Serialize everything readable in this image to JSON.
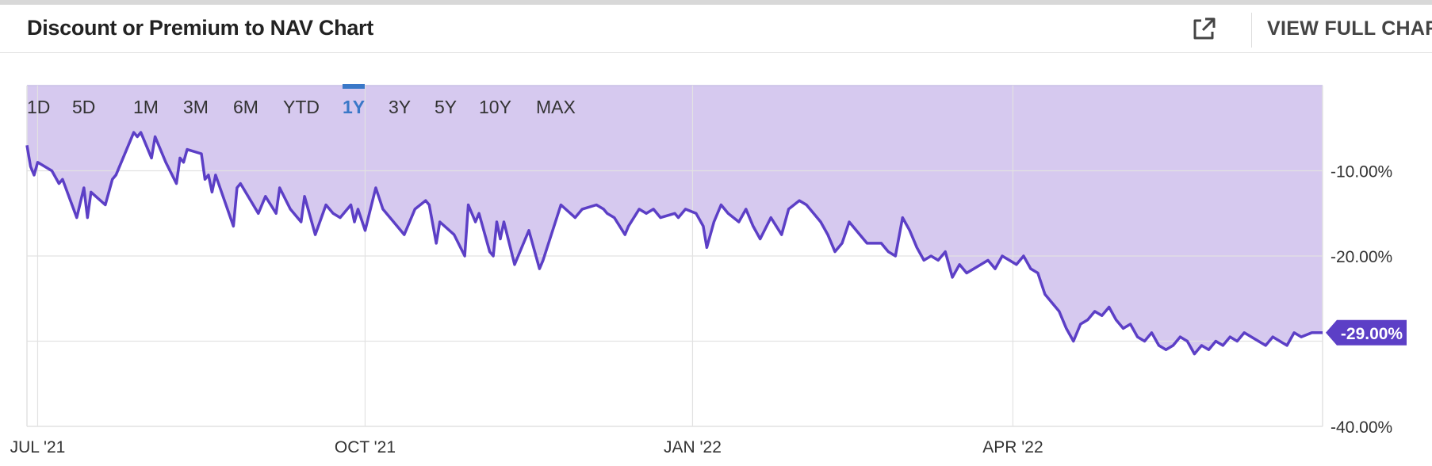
{
  "header": {
    "title": "Discount or Premium to NAV Chart",
    "full_chart_label": "VIEW FULL CHART",
    "expand_icon": "external-link-icon"
  },
  "range_tabs": [
    {
      "label": "1D",
      "active": false
    },
    {
      "label": "5D",
      "active": false
    },
    {
      "label": "1M",
      "active": false
    },
    {
      "label": "3M",
      "active": false
    },
    {
      "label": "6M",
      "active": false
    },
    {
      "label": "YTD",
      "active": false
    },
    {
      "label": "1Y",
      "active": true
    },
    {
      "label": "3Y",
      "active": false
    },
    {
      "label": "5Y",
      "active": false
    },
    {
      "label": "10Y",
      "active": false
    },
    {
      "label": "MAX",
      "active": false
    }
  ],
  "colors": {
    "line": "#5c3fc6",
    "fill": "#d6c9ef",
    "badge": "#5c3fc6",
    "grid": "#e2e2e2",
    "active_tab": "#3a78c8"
  },
  "chart_data": {
    "type": "area",
    "title": "Discount or Premium to NAV Chart",
    "xlabel": "",
    "ylabel": "",
    "ylim": [
      -40,
      0
    ],
    "y_ticks": [
      {
        "value": -10,
        "label": "-10.00%"
      },
      {
        "value": -20,
        "label": "-20.00%"
      },
      {
        "value": -40,
        "label": "-40.00%"
      }
    ],
    "y_gridlines": [
      -10,
      -20,
      -30
    ],
    "x_range": [
      "2021-06-28",
      "2022-06-27"
    ],
    "x_ticks": [
      {
        "date": "2021-07-01",
        "label": "JUL '21"
      },
      {
        "date": "2021-10-01",
        "label": "OCT '21"
      },
      {
        "date": "2022-01-01",
        "label": "JAN '22"
      },
      {
        "date": "2022-04-01",
        "label": "APR '22"
      }
    ],
    "last_value_label": "-29.00%",
    "grid": true,
    "series": [
      {
        "points": [
          [
            "2021-06-28",
            -7.0
          ],
          [
            "2021-06-29",
            -9.5
          ],
          [
            "2021-06-30",
            -10.5
          ],
          [
            "2021-07-01",
            -9.0
          ],
          [
            "2021-07-05",
            -10.0
          ],
          [
            "2021-07-07",
            -11.5
          ],
          [
            "2021-07-08",
            -11.0
          ],
          [
            "2021-07-12",
            -15.5
          ],
          [
            "2021-07-14",
            -12.0
          ],
          [
            "2021-07-15",
            -15.5
          ],
          [
            "2021-07-16",
            -12.5
          ],
          [
            "2021-07-20",
            -14.0
          ],
          [
            "2021-07-22",
            -11.0
          ],
          [
            "2021-07-23",
            -10.5
          ],
          [
            "2021-07-28",
            -5.5
          ],
          [
            "2021-07-29",
            -6.0
          ],
          [
            "2021-07-30",
            -5.5
          ],
          [
            "2021-08-02",
            -8.5
          ],
          [
            "2021-08-03",
            -6.0
          ],
          [
            "2021-08-06",
            -9.0
          ],
          [
            "2021-08-09",
            -11.5
          ],
          [
            "2021-08-10",
            -8.5
          ],
          [
            "2021-08-11",
            -9.0
          ],
          [
            "2021-08-12",
            -7.5
          ],
          [
            "2021-08-16",
            -8.0
          ],
          [
            "2021-08-17",
            -11.0
          ],
          [
            "2021-08-18",
            -10.5
          ],
          [
            "2021-08-19",
            -12.5
          ],
          [
            "2021-08-20",
            -10.5
          ],
          [
            "2021-08-25",
            -16.5
          ],
          [
            "2021-08-26",
            -12.0
          ],
          [
            "2021-08-27",
            -11.5
          ],
          [
            "2021-09-01",
            -15.0
          ],
          [
            "2021-09-02",
            -14.0
          ],
          [
            "2021-09-03",
            -13.0
          ],
          [
            "2021-09-06",
            -15.0
          ],
          [
            "2021-09-07",
            -12.0
          ],
          [
            "2021-09-10",
            -14.5
          ],
          [
            "2021-09-13",
            -16.0
          ],
          [
            "2021-09-14",
            -13.0
          ],
          [
            "2021-09-17",
            -17.5
          ],
          [
            "2021-09-20",
            -14.0
          ],
          [
            "2021-09-22",
            -15.0
          ],
          [
            "2021-09-24",
            -15.5
          ],
          [
            "2021-09-27",
            -14.0
          ],
          [
            "2021-09-28",
            -16.0
          ],
          [
            "2021-09-29",
            -14.5
          ],
          [
            "2021-10-01",
            -17.0
          ],
          [
            "2021-10-04",
            -12.0
          ],
          [
            "2021-10-06",
            -14.5
          ],
          [
            "2021-10-09",
            -16.0
          ],
          [
            "2021-10-12",
            -17.5
          ],
          [
            "2021-10-15",
            -14.5
          ],
          [
            "2021-10-18",
            -13.5
          ],
          [
            "2021-10-19",
            -14.0
          ],
          [
            "2021-10-21",
            -18.5
          ],
          [
            "2021-10-22",
            -16.0
          ],
          [
            "2021-10-26",
            -17.5
          ],
          [
            "2021-10-29",
            -20.0
          ],
          [
            "2021-10-30",
            -14.0
          ],
          [
            "2021-11-01",
            -16.0
          ],
          [
            "2021-11-02",
            -15.0
          ],
          [
            "2021-11-05",
            -19.5
          ],
          [
            "2021-11-06",
            -20.0
          ],
          [
            "2021-11-07",
            -16.0
          ],
          [
            "2021-11-08",
            -18.0
          ],
          [
            "2021-11-09",
            -16.0
          ],
          [
            "2021-11-12",
            -21.0
          ],
          [
            "2021-11-15",
            -18.0
          ],
          [
            "2021-11-16",
            -17.0
          ],
          [
            "2021-11-19",
            -21.5
          ],
          [
            "2021-11-20",
            -20.5
          ],
          [
            "2021-11-25",
            -14.0
          ],
          [
            "2021-11-29",
            -15.5
          ],
          [
            "2021-12-01",
            -14.5
          ],
          [
            "2021-12-05",
            -14.0
          ],
          [
            "2021-12-07",
            -14.5
          ],
          [
            "2021-12-08",
            -15.0
          ],
          [
            "2021-12-10",
            -15.5
          ],
          [
            "2021-12-13",
            -17.5
          ],
          [
            "2021-12-14",
            -16.5
          ],
          [
            "2021-12-17",
            -14.5
          ],
          [
            "2021-12-19",
            -15.0
          ],
          [
            "2021-12-21",
            -14.5
          ],
          [
            "2021-12-23",
            -15.5
          ],
          [
            "2021-12-27",
            -15.0
          ],
          [
            "2021-12-28",
            -15.5
          ],
          [
            "2021-12-30",
            -14.5
          ],
          [
            "2022-01-02",
            -15.0
          ],
          [
            "2022-01-04",
            -16.5
          ],
          [
            "2022-01-05",
            -19.0
          ],
          [
            "2022-01-07",
            -16.0
          ],
          [
            "2022-01-09",
            -14.0
          ],
          [
            "2022-01-11",
            -15.0
          ],
          [
            "2022-01-14",
            -16.0
          ],
          [
            "2022-01-16",
            -14.5
          ],
          [
            "2022-01-18",
            -16.5
          ],
          [
            "2022-01-20",
            -18.0
          ],
          [
            "2022-01-23",
            -15.5
          ],
          [
            "2022-01-26",
            -17.5
          ],
          [
            "2022-01-28",
            -14.5
          ],
          [
            "2022-01-31",
            -13.5
          ],
          [
            "2022-02-02",
            -14.0
          ],
          [
            "2022-02-04",
            -15.0
          ],
          [
            "2022-02-06",
            -16.0
          ],
          [
            "2022-02-08",
            -17.5
          ],
          [
            "2022-02-10",
            -19.5
          ],
          [
            "2022-02-12",
            -18.5
          ],
          [
            "2022-02-14",
            -16.0
          ],
          [
            "2022-02-17",
            -17.5
          ],
          [
            "2022-02-19",
            -18.5
          ],
          [
            "2022-02-23",
            -18.5
          ],
          [
            "2022-02-25",
            -19.5
          ],
          [
            "2022-02-27",
            -20.0
          ],
          [
            "2022-03-01",
            -15.5
          ],
          [
            "2022-03-03",
            -17.0
          ],
          [
            "2022-03-05",
            -19.0
          ],
          [
            "2022-03-07",
            -20.5
          ],
          [
            "2022-03-09",
            -20.0
          ],
          [
            "2022-03-11",
            -20.5
          ],
          [
            "2022-03-13",
            -19.5
          ],
          [
            "2022-03-15",
            -22.5
          ],
          [
            "2022-03-17",
            -21.0
          ],
          [
            "2022-03-19",
            -22.0
          ],
          [
            "2022-03-21",
            -21.5
          ],
          [
            "2022-03-23",
            -21.0
          ],
          [
            "2022-03-25",
            -20.5
          ],
          [
            "2022-03-27",
            -21.5
          ],
          [
            "2022-03-29",
            -20.0
          ],
          [
            "2022-03-31",
            -20.5
          ],
          [
            "2022-04-02",
            -21.0
          ],
          [
            "2022-04-04",
            -20.0
          ],
          [
            "2022-04-06",
            -21.5
          ],
          [
            "2022-04-08",
            -22.0
          ],
          [
            "2022-04-10",
            -24.5
          ],
          [
            "2022-04-12",
            -25.5
          ],
          [
            "2022-04-14",
            -26.5
          ],
          [
            "2022-04-16",
            -28.5
          ],
          [
            "2022-04-18",
            -30.0
          ],
          [
            "2022-04-20",
            -28.0
          ],
          [
            "2022-04-22",
            -27.5
          ],
          [
            "2022-04-24",
            -26.5
          ],
          [
            "2022-04-26",
            -27.0
          ],
          [
            "2022-04-28",
            -26.0
          ],
          [
            "2022-04-30",
            -27.5
          ],
          [
            "2022-05-02",
            -28.5
          ],
          [
            "2022-05-04",
            -28.0
          ],
          [
            "2022-05-06",
            -29.5
          ],
          [
            "2022-05-08",
            -30.0
          ],
          [
            "2022-05-10",
            -29.0
          ],
          [
            "2022-05-12",
            -30.5
          ],
          [
            "2022-05-14",
            -31.0
          ],
          [
            "2022-05-16",
            -30.5
          ],
          [
            "2022-05-18",
            -29.5
          ],
          [
            "2022-05-20",
            -30.0
          ],
          [
            "2022-05-22",
            -31.5
          ],
          [
            "2022-05-24",
            -30.5
          ],
          [
            "2022-05-26",
            -31.0
          ],
          [
            "2022-05-28",
            -30.0
          ],
          [
            "2022-05-30",
            -30.5
          ],
          [
            "2022-06-01",
            -29.5
          ],
          [
            "2022-06-03",
            -30.0
          ],
          [
            "2022-06-05",
            -29.0
          ],
          [
            "2022-06-07",
            -29.5
          ],
          [
            "2022-06-09",
            -30.0
          ],
          [
            "2022-06-11",
            -30.5
          ],
          [
            "2022-06-13",
            -29.5
          ],
          [
            "2022-06-15",
            -30.0
          ],
          [
            "2022-06-17",
            -30.5
          ],
          [
            "2022-06-19",
            -29.0
          ],
          [
            "2022-06-21",
            -29.5
          ],
          [
            "2022-06-24",
            -29.0
          ],
          [
            "2022-06-27",
            -29.0
          ]
        ]
      }
    ]
  }
}
